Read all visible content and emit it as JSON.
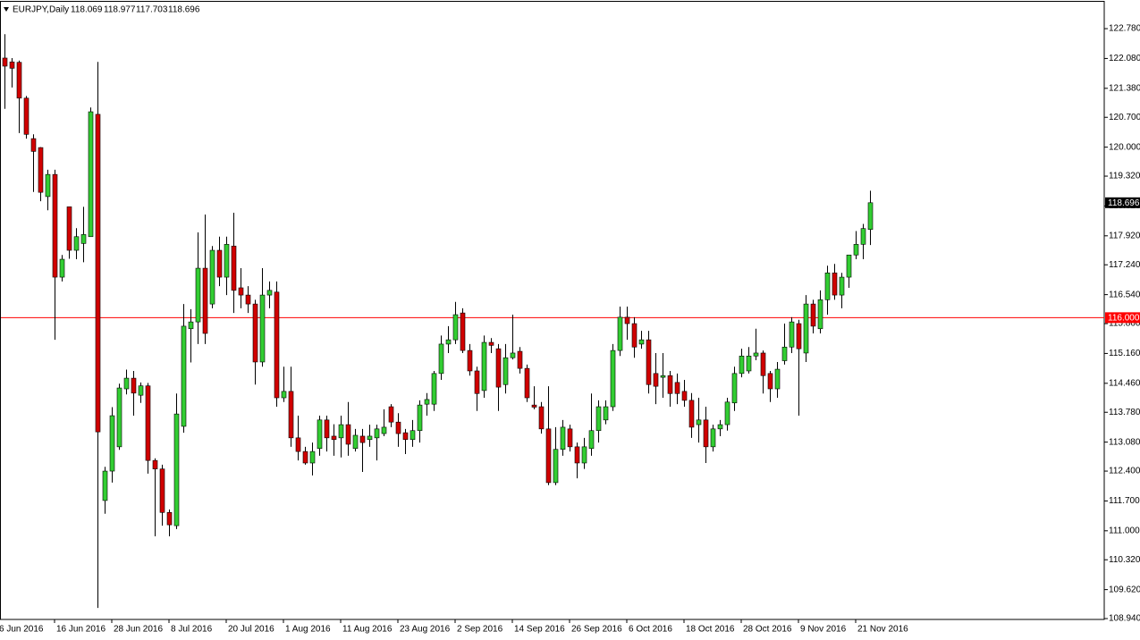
{
  "chart_data": {
    "type": "candlestick",
    "title": "EURJPY,Daily",
    "categories": [
      "6 Jun 2016",
      null,
      null,
      null,
      null,
      null,
      null,
      null,
      "16 Jun 2016",
      null,
      null,
      null,
      null,
      null,
      null,
      null,
      "28 Jun 2016",
      null,
      null,
      null,
      null,
      null,
      null,
      null,
      "8 Jul 2016",
      null,
      null,
      null,
      null,
      null,
      null,
      null,
      "20 Jul 2016",
      null,
      null,
      null,
      null,
      null,
      null,
      null,
      "1 Aug 2016",
      null,
      null,
      null,
      null,
      null,
      null,
      null,
      "11 Aug 2016",
      null,
      null,
      null,
      null,
      null,
      null,
      null,
      "23 Aug 2016",
      null,
      null,
      null,
      null,
      null,
      null,
      null,
      "2 Sep 2016",
      null,
      null,
      null,
      null,
      null,
      null,
      null,
      "14 Sep 2016",
      null,
      null,
      null,
      null,
      null,
      null,
      null,
      "26 Sep 2016",
      null,
      null,
      null,
      null,
      null,
      null,
      null,
      "6 Oct 2016",
      null,
      null,
      null,
      null,
      null,
      null,
      null,
      "18 Oct 2016",
      null,
      null,
      null,
      null,
      null,
      null,
      null,
      "28 Oct 2016",
      null,
      null,
      null,
      null,
      null,
      null,
      null,
      "9 Nov 2016",
      null,
      null,
      null,
      null,
      null,
      null,
      null,
      "21 Nov 2016",
      null
    ],
    "open": [
      122.09,
      122.0,
      121.99,
      121.15,
      120.2,
      119.99,
      118.84,
      119.36,
      116.95,
      118.6,
      117.58,
      117.74,
      117.9,
      120.77,
      111.71,
      112.4,
      112.97,
      114.33,
      114.58,
      114.18,
      114.4,
      112.65,
      112.45,
      111.43,
      111.12,
      113.45,
      115.74,
      115.9,
      117.16,
      116.32,
      117.58,
      116.95,
      117.68,
      116.7,
      116.53,
      116.32,
      114.96,
      116.53,
      116.6,
      114.12,
      114.27,
      113.18,
      112.86,
      112.59,
      112.93,
      113.6,
      113.22,
      113.18,
      113.49,
      112.93,
      113.22,
      113.14,
      113.18,
      113.28,
      113.91,
      113.55,
      113.3,
      113.14,
      113.35,
      113.97,
      113.97,
      114.69,
      115.38,
      115.48,
      116.11,
      115.23,
      114.75,
      114.29,
      115.42,
      115.27,
      114.43,
      115.06,
      115.21,
      114.81,
      113.95,
      113.91,
      113.39,
      112.13,
      112.91,
      113.39,
      112.97,
      112.59,
      112.93,
      113.35,
      113.6,
      113.91,
      115.23,
      116.01,
      115.86,
      115.38,
      115.48,
      114.69,
      114.6,
      114.64,
      114.48,
      114.27,
      114.06,
      113.49,
      113.6,
      112.97,
      113.39,
      113.49,
      114.0,
      114.69,
      114.75,
      115.1,
      115.17,
      114.69,
      114.33,
      114.99,
      115.31,
      115.86,
      115.17,
      116.32,
      115.74,
      116.42,
      117.05,
      116.53,
      116.95,
      117.47,
      117.72,
      118.069
    ],
    "high": [
      122.65,
      122.09,
      122.03,
      121.2,
      120.3,
      120.0,
      119.47,
      119.47,
      117.47,
      118.6,
      118.1,
      118.6,
      120.93,
      122.0,
      112.5,
      113.9,
      114.45,
      114.78,
      114.75,
      114.48,
      114.47,
      112.7,
      112.55,
      111.5,
      114.22,
      116.32,
      116.2,
      118.0,
      118.42,
      117.68,
      117.9,
      117.9,
      118.46,
      117.16,
      116.74,
      116.42,
      117.16,
      116.85,
      116.85,
      114.85,
      114.85,
      113.7,
      112.97,
      113.07,
      113.7,
      113.7,
      113.5,
      113.7,
      114.02,
      113.39,
      113.39,
      113.49,
      113.49,
      113.85,
      113.97,
      113.76,
      113.39,
      113.6,
      114.06,
      114.23,
      114.75,
      115.58,
      115.8,
      116.37,
      116.22,
      115.38,
      114.85,
      115.58,
      115.52,
      115.38,
      115.38,
      116.07,
      115.31,
      114.9,
      114.39,
      114.02,
      114.39,
      113.43,
      113.6,
      113.49,
      113.07,
      113.18,
      114.22,
      114.06,
      114.06,
      115.38,
      116.26,
      116.26,
      116.01,
      115.69,
      115.69,
      115.17,
      115.17,
      114.75,
      114.69,
      114.54,
      114.23,
      114.12,
      113.91,
      113.49,
      113.6,
      114.12,
      114.85,
      115.27,
      115.31,
      115.74,
      115.23,
      114.75,
      114.96,
      115.86,
      116.01,
      115.95,
      116.53,
      116.42,
      116.64,
      117.22,
      117.26,
      117.05,
      117.47,
      118.03,
      118.2,
      118.977
    ],
    "low": [
      120.9,
      121.4,
      120.33,
      120.2,
      118.95,
      118.73,
      118.52,
      115.48,
      116.85,
      117.38,
      117.37,
      117.3,
      117.9,
      109.19,
      111.4,
      112.13,
      112.9,
      114.2,
      113.7,
      114.0,
      112.34,
      110.87,
      111.12,
      110.87,
      111.04,
      113.3,
      114.95,
      115.38,
      115.38,
      116.22,
      116.74,
      116.53,
      116.11,
      116.22,
      116.11,
      114.43,
      114.85,
      116.22,
      113.91,
      114.02,
      112.97,
      112.65,
      112.55,
      112.3,
      112.76,
      112.86,
      112.76,
      112.72,
      112.76,
      112.86,
      112.38,
      112.97,
      112.65,
      113.22,
      113.43,
      112.97,
      112.8,
      112.97,
      113.07,
      113.7,
      113.81,
      114.54,
      115.17,
      115.38,
      115.17,
      114.64,
      113.81,
      114.12,
      115.17,
      113.81,
      114.22,
      115.02,
      114.69,
      114.02,
      113.85,
      113.28,
      112.07,
      112.07,
      112.76,
      112.86,
      112.23,
      112.45,
      112.76,
      113.07,
      113.5,
      113.81,
      115.1,
      115.48,
      115.06,
      115.27,
      114.22,
      113.97,
      114.12,
      113.91,
      113.97,
      113.91,
      113.18,
      113.07,
      112.59,
      112.86,
      113.22,
      113.35,
      113.81,
      114.6,
      114.69,
      115.0,
      114.22,
      114.02,
      114.12,
      114.9,
      115.17,
      113.7,
      114.96,
      115.63,
      115.63,
      116.07,
      116.42,
      116.22,
      116.7,
      117.37,
      117.37,
      117.703
    ],
    "close": [
      121.9,
      121.85,
      121.15,
      120.3,
      119.9,
      118.94,
      119.36,
      116.95,
      117.37,
      117.58,
      117.9,
      117.95,
      120.83,
      113.32,
      112.4,
      113.7,
      114.35,
      114.58,
      114.23,
      114.4,
      112.65,
      112.45,
      111.43,
      111.14,
      113.74,
      115.8,
      115.9,
      117.16,
      115.63,
      117.58,
      116.95,
      117.72,
      116.64,
      116.53,
      116.32,
      114.96,
      116.53,
      116.64,
      114.12,
      114.27,
      113.18,
      112.86,
      112.59,
      112.86,
      113.6,
      113.18,
      113.14,
      113.49,
      113.03,
      113.24,
      113.07,
      113.22,
      113.39,
      113.43,
      113.55,
      113.28,
      113.14,
      113.35,
      113.95,
      114.08,
      114.69,
      115.38,
      115.48,
      116.07,
      115.23,
      114.75,
      114.22,
      115.42,
      115.35,
      114.37,
      115.06,
      115.17,
      114.81,
      114.12,
      113.9,
      113.39,
      112.13,
      112.91,
      113.43,
      112.97,
      112.59,
      112.97,
      113.35,
      113.91,
      113.91,
      115.23,
      116.01,
      115.86,
      115.31,
      115.48,
      114.43,
      114.39,
      114.64,
      114.22,
      114.22,
      114.06,
      113.43,
      113.6,
      112.97,
      113.39,
      113.49,
      114.02,
      114.69,
      115.1,
      115.1,
      115.17,
      114.64,
      114.33,
      114.79,
      115.31,
      115.9,
      115.27,
      116.32,
      115.8,
      116.42,
      117.05,
      116.53,
      116.95,
      117.47,
      117.72,
      118.09,
      118.696
    ],
    "up_color": "#32cd32",
    "down_color": "#d00000",
    "ylim": [
      108.92,
      123.41
    ],
    "yticks": [
      {
        "value": 122.78,
        "label": "122.780"
      },
      {
        "value": 122.08,
        "label": "122.080"
      },
      {
        "value": 121.38,
        "label": "121.380"
      },
      {
        "value": 120.7,
        "label": "120.700"
      },
      {
        "value": 120.0,
        "label": "120.000"
      },
      {
        "value": 119.32,
        "label": "119.320"
      },
      {
        "value": 118.62,
        "label": "118.620"
      },
      {
        "value": 117.92,
        "label": "117.920"
      },
      {
        "value": 117.24,
        "label": "117.240"
      },
      {
        "value": 116.54,
        "label": "116.540"
      },
      {
        "value": 115.86,
        "label": "115.860"
      },
      {
        "value": 115.16,
        "label": "115.160"
      },
      {
        "value": 114.46,
        "label": "114.460"
      },
      {
        "value": 113.78,
        "label": "113.780"
      },
      {
        "value": 113.08,
        "label": "113.080"
      },
      {
        "value": 112.4,
        "label": "112.400"
      },
      {
        "value": 111.7,
        "label": "111.700"
      },
      {
        "value": 111.0,
        "label": "111.000"
      },
      {
        "value": 110.32,
        "label": "110.320"
      },
      {
        "value": 109.62,
        "label": "109.620"
      },
      {
        "value": 108.94,
        "label": "108.940"
      }
    ],
    "hline": {
      "value": 116.0,
      "label": "116.000",
      "color": "#ff0000"
    }
  }
}
